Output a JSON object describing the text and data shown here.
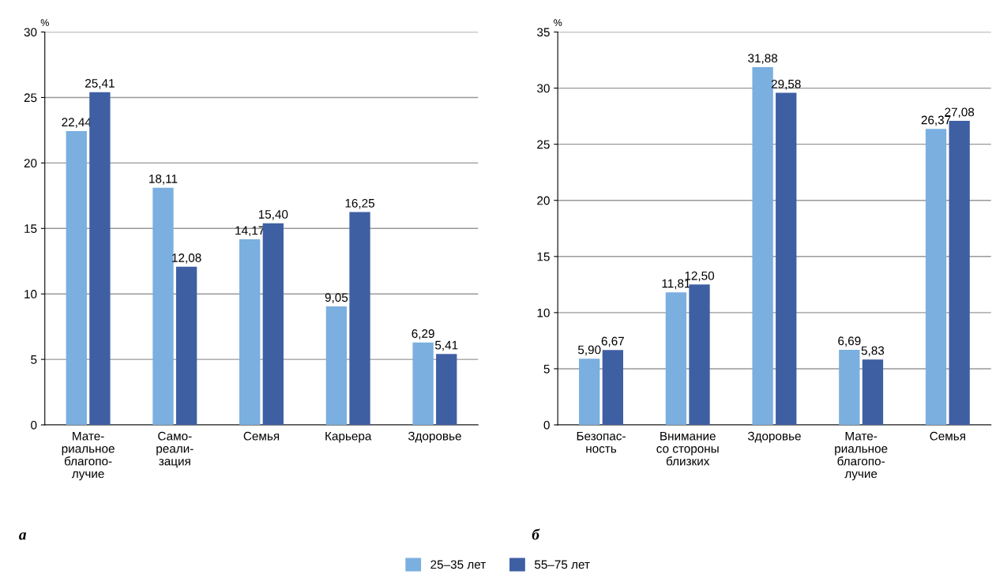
{
  "chart_data": [
    {
      "type": "bar",
      "ylabel": "%",
      "annotations": [
        "а"
      ],
      "categories": [
        "Мате-\nриальное\nблагопо-\nлучие",
        "Само-\nреали-\nзация",
        "Семья",
        "Карьера",
        "Здоровье"
      ],
      "series": [
        {
          "name": "25–35 лет",
          "color": "#7aafdf",
          "values": [
            22.44,
            18.11,
            14.17,
            9.05,
            6.29
          ],
          "value_labels": [
            "22,44",
            "18,11",
            "14,17",
            "9,05",
            "6,29"
          ]
        },
        {
          "name": "55–75 лет",
          "color": "#3f5fa3",
          "values": [
            25.41,
            12.08,
            15.4,
            16.25,
            5.41
          ],
          "value_labels": [
            "25,41",
            "12,08",
            "15,40",
            "16,25",
            "5,41"
          ]
        }
      ],
      "ylim": [
        0,
        30
      ],
      "yticks": [
        0,
        5,
        10,
        15,
        20,
        25,
        30
      ],
      "grid": "y",
      "legend": "bottom"
    },
    {
      "type": "bar",
      "ylabel": "%",
      "annotations": [
        "б"
      ],
      "categories": [
        "Безопас-\nность",
        "Внимание\nсо стороны\nблизких",
        "Здоровье",
        "Мате-\nриальное\nблагопо-\nлучие",
        "Семья"
      ],
      "series": [
        {
          "color": "#7aafdf",
          "values": [
            5.9,
            11.81,
            31.88,
            6.69,
            26.37
          ],
          "value_labels": [
            "5,90",
            "11,81",
            "31,88",
            "6,69",
            "26,37"
          ]
        },
        {
          "color": "#3f5fa3",
          "values": [
            6.67,
            12.5,
            29.58,
            5.83,
            27.08
          ],
          "value_labels": [
            "6,67",
            "12,50",
            "29,58",
            "5,83",
            "27,08"
          ]
        }
      ],
      "ylim": [
        0,
        35
      ],
      "yticks": [
        0,
        5,
        10,
        15,
        20,
        25,
        30,
        35
      ],
      "grid": "y"
    }
  ]
}
